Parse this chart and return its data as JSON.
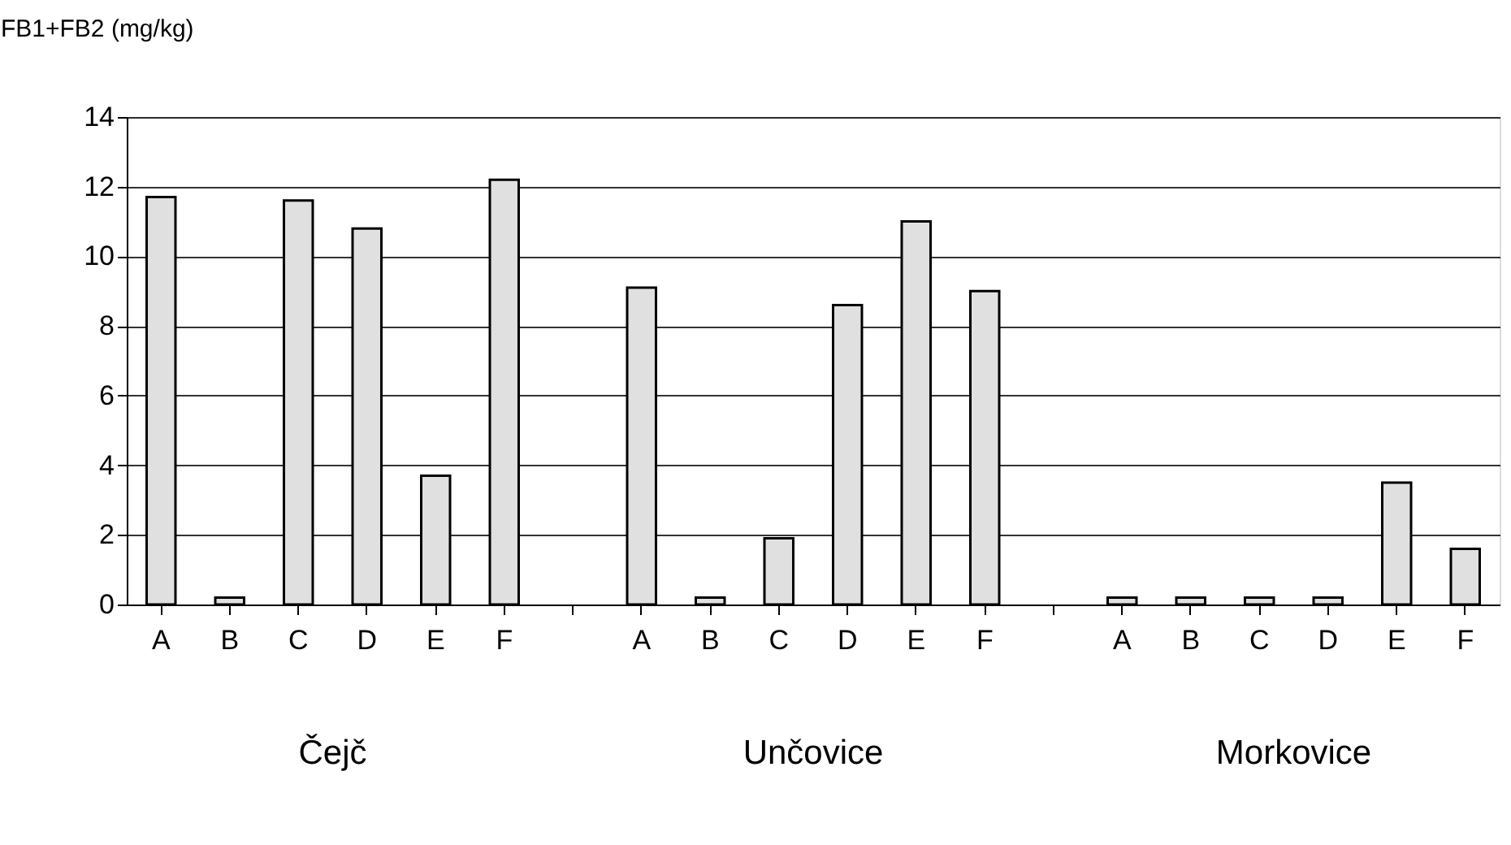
{
  "chart_data": {
    "type": "bar",
    "ylabel": "FB1+FB2 (mg/kg)",
    "categories": [
      "A",
      "B",
      "C",
      "D",
      "E",
      "F",
      null,
      "A",
      "B",
      "C",
      "D",
      "E",
      "F",
      null,
      "A",
      "B",
      "C",
      "D",
      "E",
      "F"
    ],
    "values": [
      11.7,
      0.2,
      11.6,
      10.8,
      3.7,
      12.2,
      null,
      9.1,
      0.2,
      1.9,
      8.6,
      11.0,
      9.0,
      null,
      0.2,
      0.2,
      0.2,
      0.2,
      3.5,
      1.6
    ],
    "color": "#e0e0e0",
    "ylim": [
      0,
      14
    ],
    "yticks": [
      0,
      2,
      4,
      6,
      8,
      10,
      12,
      14
    ],
    "grid": "y",
    "annotations": [
      "Čejč",
      "Unčovice",
      "Morkovice"
    ]
  }
}
